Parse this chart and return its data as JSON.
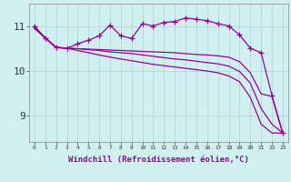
{
  "x": [
    0,
    1,
    2,
    3,
    4,
    5,
    6,
    7,
    8,
    9,
    10,
    11,
    12,
    13,
    14,
    15,
    16,
    17,
    18,
    19,
    20,
    21,
    22,
    23
  ],
  "series": [
    {
      "name": "line_straight1",
      "y": [
        10.95,
        10.73,
        10.52,
        10.5,
        10.49,
        10.48,
        10.47,
        10.46,
        10.45,
        10.44,
        10.43,
        10.42,
        10.41,
        10.4,
        10.38,
        10.36,
        10.35,
        10.33,
        10.3,
        10.2,
        9.95,
        9.48,
        9.42,
        8.6
      ],
      "markers": false
    },
    {
      "name": "line_straight2",
      "y": [
        10.95,
        10.73,
        10.52,
        10.5,
        10.49,
        10.47,
        10.45,
        10.42,
        10.4,
        10.38,
        10.35,
        10.32,
        10.29,
        10.26,
        10.24,
        10.21,
        10.18,
        10.15,
        10.1,
        9.98,
        9.72,
        9.15,
        8.8,
        8.6
      ],
      "markers": false
    },
    {
      "name": "line_straight3",
      "y": [
        10.95,
        10.73,
        10.52,
        10.5,
        10.45,
        10.4,
        10.35,
        10.3,
        10.26,
        10.22,
        10.18,
        10.14,
        10.11,
        10.08,
        10.05,
        10.02,
        9.99,
        9.95,
        9.88,
        9.75,
        9.4,
        8.8,
        8.6,
        8.6
      ],
      "markers": false
    },
    {
      "name": "line_wavy",
      "y": [
        11.0,
        10.73,
        10.52,
        10.5,
        10.6,
        10.68,
        10.78,
        11.02,
        10.78,
        10.72,
        11.05,
        11.0,
        11.08,
        11.1,
        11.18,
        11.15,
        11.12,
        11.05,
        11.0,
        10.8,
        10.5,
        10.4,
        9.45,
        8.6
      ],
      "markers": true
    }
  ],
  "color": "#990099",
  "background_color": "#d0f0f0",
  "grid_color": "#b0d8d8",
  "xlabel": "Windchill (Refroidissement éolien,°C)",
  "xlabel_fontsize": 6.5,
  "ylabel_fontsize": 8,
  "yticks": [
    9,
    10,
    11
  ],
  "xticks": [
    0,
    1,
    2,
    3,
    4,
    5,
    6,
    7,
    8,
    9,
    10,
    11,
    12,
    13,
    14,
    15,
    16,
    17,
    18,
    19,
    20,
    21,
    22,
    23
  ],
  "xlim": [
    -0.5,
    23.5
  ],
  "ylim": [
    8.4,
    11.5
  ]
}
